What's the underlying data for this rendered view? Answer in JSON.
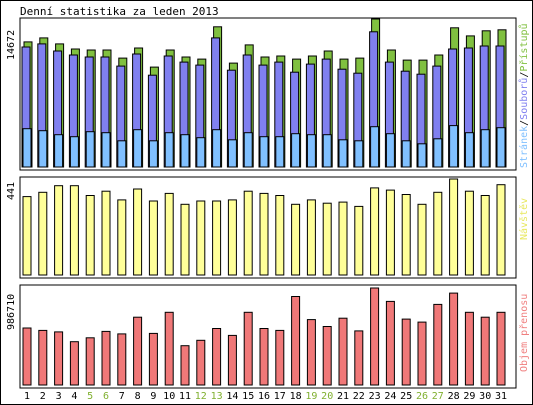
{
  "title": "Denní statistika za leden 2013",
  "colors": {
    "hits": "#80c040",
    "files": "#8080f0",
    "pages": "#80c0ff",
    "visits": "#ffff99",
    "kbytes": "#f07878",
    "weekend_label": "#80b030",
    "normal_label": "#000000"
  },
  "chart_data": [
    {
      "type": "bar",
      "title": "",
      "categories": [
        "1",
        "2",
        "3",
        "4",
        "5",
        "6",
        "7",
        "8",
        "9",
        "10",
        "11",
        "12",
        "13",
        "14",
        "15",
        "16",
        "17",
        "18",
        "19",
        "20",
        "21",
        "22",
        "23",
        "24",
        "25",
        "26",
        "27",
        "28",
        "29",
        "30",
        "31"
      ],
      "weekend_days": [
        "5",
        "6",
        "12",
        "13",
        "19",
        "20",
        "26",
        "27"
      ],
      "ymax_label": "14672",
      "ylim": [
        0,
        14672
      ],
      "legend": [
        "Stránek",
        "Souborů",
        "Přístupů"
      ],
      "series": [
        {
          "name": "Přístupů",
          "values": [
            12400,
            12800,
            12200,
            11700,
            11600,
            11600,
            10800,
            11800,
            9900,
            11600,
            10900,
            10700,
            13900,
            10300,
            12100,
            10900,
            11000,
            10700,
            11000,
            11500,
            10700,
            10800,
            14672,
            11600,
            10600,
            10600,
            11100,
            13800,
            13000,
            13500,
            13600
          ]
        },
        {
          "name": "Souborů",
          "values": [
            11900,
            12200,
            11500,
            11100,
            10900,
            10900,
            10000,
            11200,
            9100,
            11000,
            10400,
            10100,
            12800,
            9600,
            11100,
            10100,
            10400,
            9400,
            10200,
            10700,
            9700,
            9300,
            13400,
            10400,
            9500,
            9200,
            10000,
            11700,
            11800,
            12000,
            12000
          ]
        },
        {
          "name": "Stránek",
          "values": [
            3800,
            3600,
            3200,
            3000,
            3500,
            3400,
            2600,
            3700,
            2600,
            3400,
            3200,
            2900,
            3700,
            2700,
            3400,
            3000,
            3000,
            3300,
            3200,
            3200,
            2700,
            2600,
            4000,
            3300,
            2600,
            2300,
            2800,
            4100,
            3400,
            3700,
            3900
          ]
        }
      ]
    },
    {
      "type": "bar",
      "title": "",
      "categories": [
        "1",
        "2",
        "3",
        "4",
        "5",
        "6",
        "7",
        "8",
        "9",
        "10",
        "11",
        "12",
        "13",
        "14",
        "15",
        "16",
        "17",
        "18",
        "19",
        "20",
        "21",
        "22",
        "23",
        "24",
        "25",
        "26",
        "27",
        "28",
        "29",
        "30",
        "31"
      ],
      "ymax_label": "441",
      "ylim": [
        0,
        441
      ],
      "legend": [
        "Návštěv"
      ],
      "series": [
        {
          "name": "Návštěv",
          "values": [
            360,
            380,
            410,
            410,
            365,
            385,
            345,
            395,
            340,
            375,
            325,
            340,
            340,
            345,
            385,
            375,
            365,
            325,
            345,
            330,
            335,
            315,
            400,
            390,
            370,
            325,
            380,
            441,
            385,
            365,
            415
          ]
        }
      ]
    },
    {
      "type": "bar",
      "title": "",
      "categories": [
        "1",
        "2",
        "3",
        "4",
        "5",
        "6",
        "7",
        "8",
        "9",
        "10",
        "11",
        "12",
        "13",
        "14",
        "15",
        "16",
        "17",
        "18",
        "19",
        "20",
        "21",
        "22",
        "23",
        "24",
        "25",
        "26",
        "27",
        "28",
        "29",
        "30",
        "31"
      ],
      "ymax_label": "986710",
      "ylim": [
        0,
        986710
      ],
      "legend": [
        "Objem přenosu"
      ],
      "series": [
        {
          "name": "Objem přenosu",
          "values": [
            580000,
            555000,
            540000,
            440000,
            480000,
            545000,
            520000,
            690000,
            525000,
            740000,
            400000,
            455000,
            575000,
            505000,
            740000,
            575000,
            555000,
            900000,
            665000,
            595000,
            680000,
            550000,
            986710,
            850000,
            670000,
            640000,
            820000,
            935000,
            740000,
            690000,
            740000
          ]
        }
      ]
    }
  ]
}
